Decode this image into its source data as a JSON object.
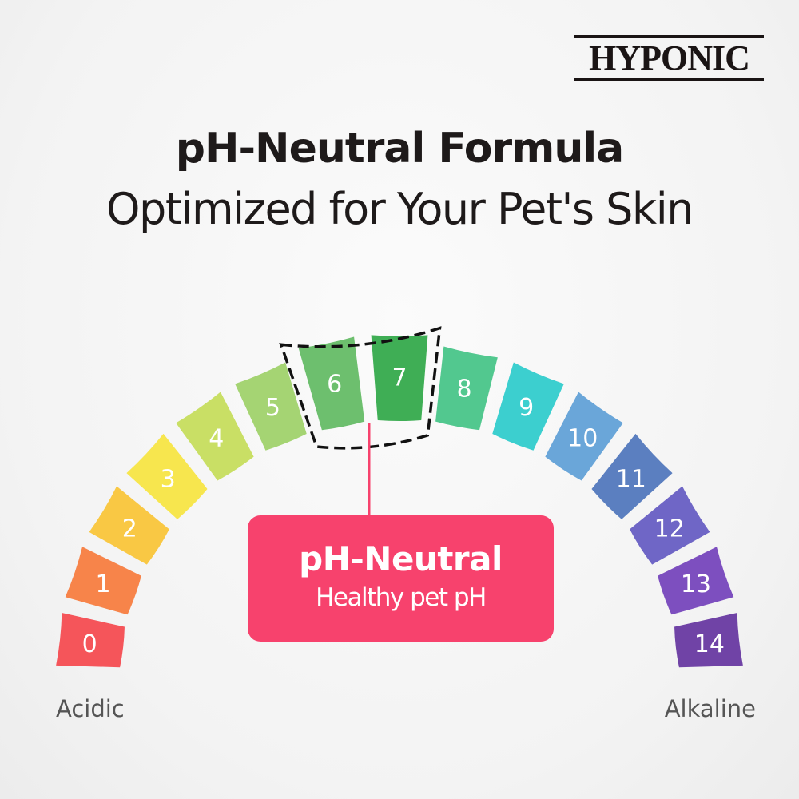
{
  "brand": "HYPONIC",
  "title": "pH-Neutral Formula",
  "subtitle": "Optimized for Your Pet's Skin",
  "scale": {
    "segments": [
      {
        "label": "0",
        "color": "#f5555a"
      },
      {
        "label": "1",
        "color": "#f7844a"
      },
      {
        "label": "2",
        "color": "#f9c844"
      },
      {
        "label": "3",
        "color": "#f7e64e"
      },
      {
        "label": "4",
        "color": "#c9df65"
      },
      {
        "label": "5",
        "color": "#a5d473"
      },
      {
        "label": "6",
        "color": "#6dbf6e"
      },
      {
        "label": "7",
        "color": "#3fae55"
      },
      {
        "label": "8",
        "color": "#52c88f"
      },
      {
        "label": "9",
        "color": "#3ccfcf"
      },
      {
        "label": "10",
        "color": "#6aa6d9"
      },
      {
        "label": "11",
        "color": "#5b7fc0"
      },
      {
        "label": "12",
        "color": "#6f66c6"
      },
      {
        "label": "13",
        "color": "#7d4fbf"
      },
      {
        "label": "14",
        "color": "#7043a6"
      }
    ],
    "highlighted": [
      "6",
      "7"
    ],
    "left_label": "Acidic",
    "right_label": "Alkaline"
  },
  "callout": {
    "title": "pH-Neutral",
    "text": "Healthy pet pH",
    "color": "#f7426d"
  }
}
